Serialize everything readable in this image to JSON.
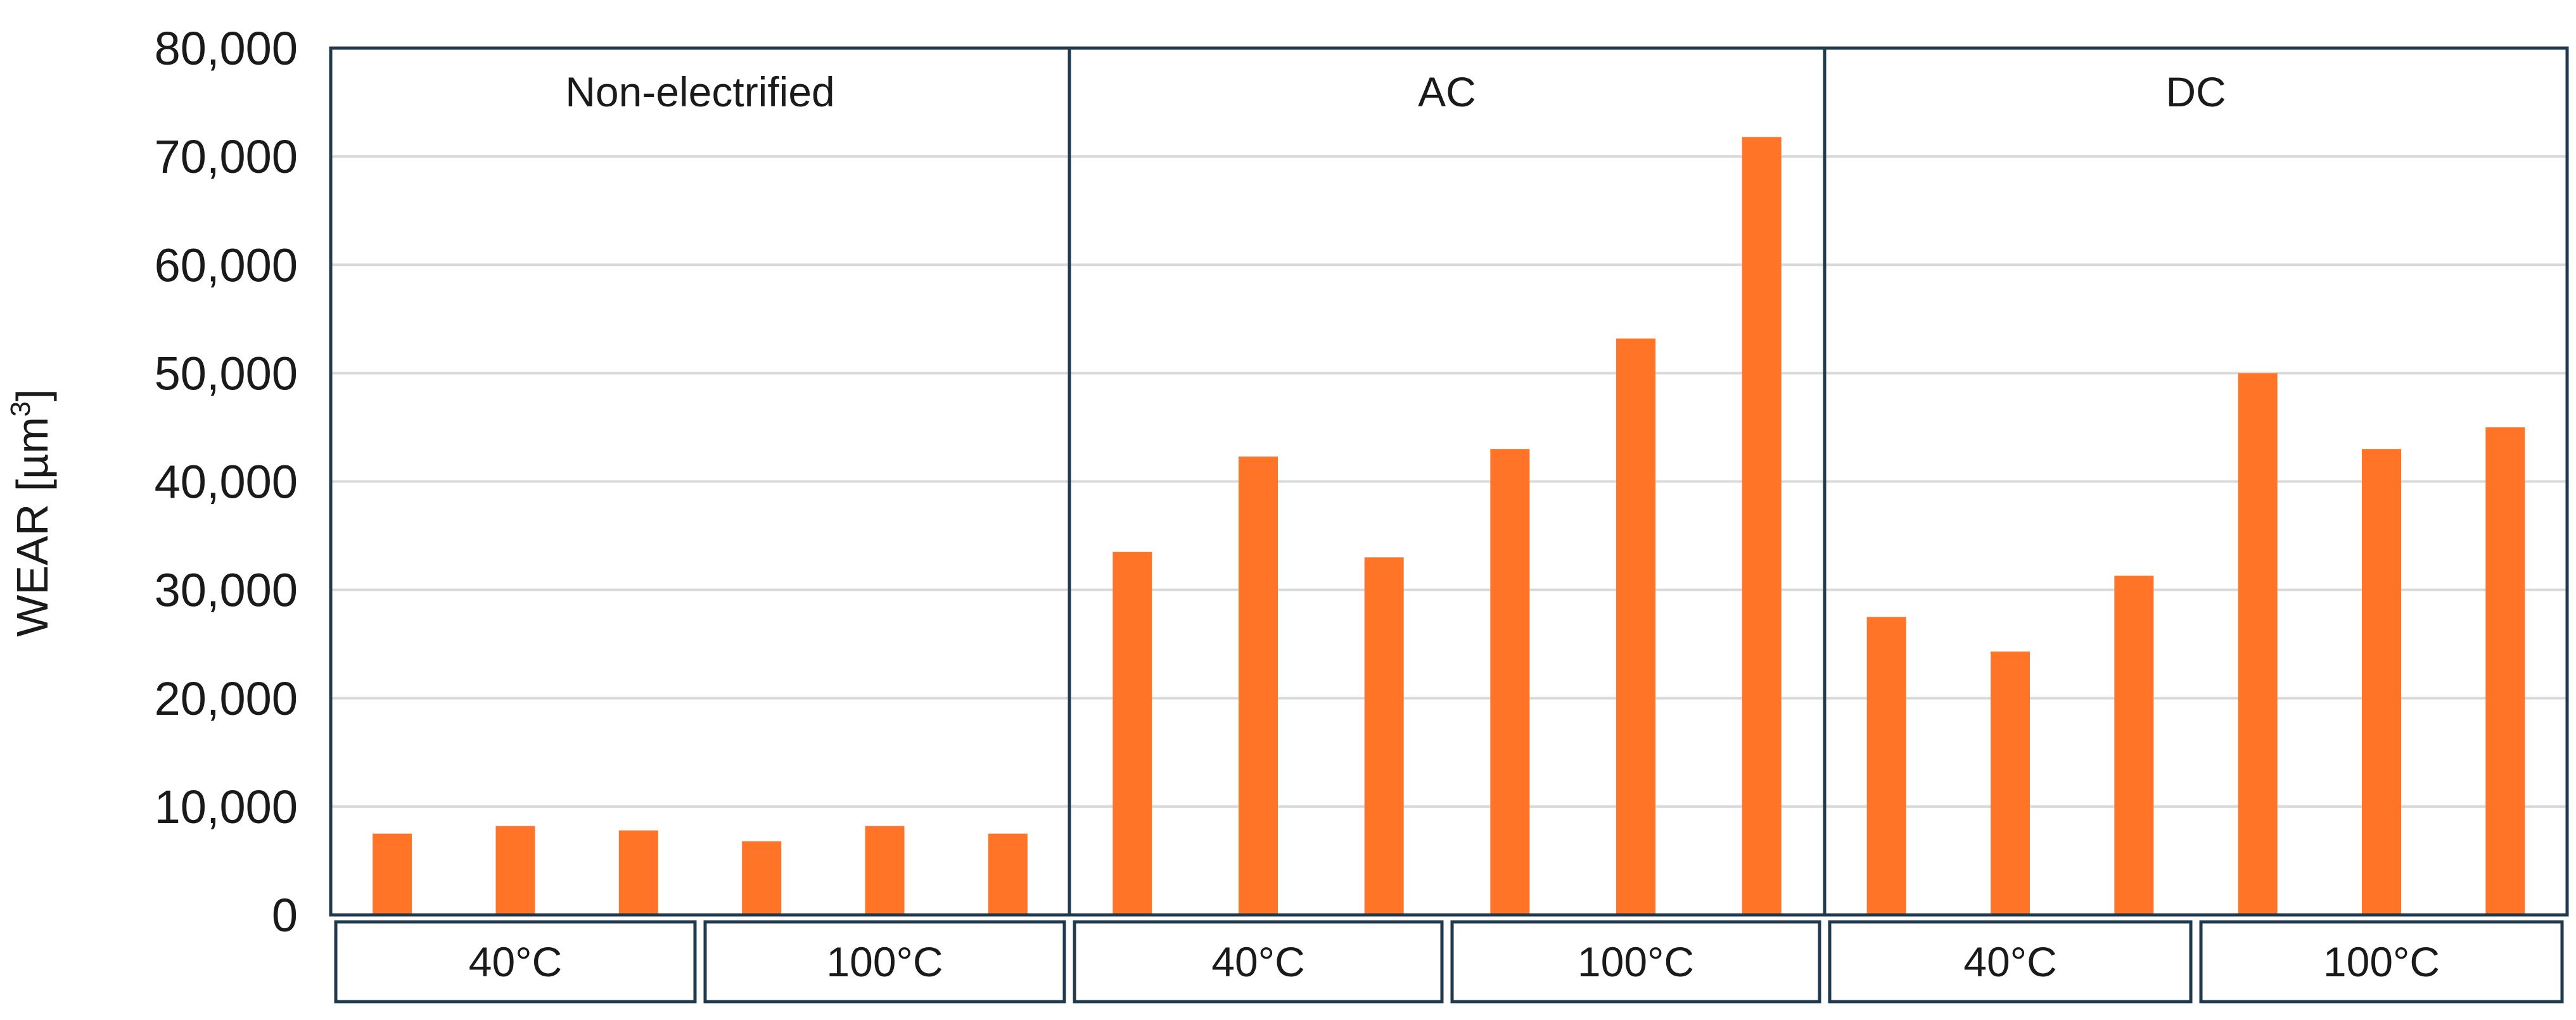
{
  "chart_data": {
    "type": "bar",
    "ylabel": "WEAR [µm",
    "ylabel_sup": "3",
    "ylabel_end": "]",
    "ylim": [
      0,
      80000
    ],
    "yticks": [
      0,
      10000,
      20000,
      30000,
      40000,
      50000,
      60000,
      70000,
      80000
    ],
    "ytick_labels": [
      "0",
      "10,000",
      "20,000",
      "30,000",
      "40,000",
      "50,000",
      "60,000",
      "70,000",
      "80,000"
    ],
    "grid": true,
    "bar_color": "#FF7427",
    "panels": [
      {
        "label": "Non-electrified",
        "groups": [
          {
            "label": "40°C",
            "values": [
              7500,
              8200,
              7800
            ]
          },
          {
            "label": "100°C",
            "values": [
              6800,
              8200,
              7500
            ]
          }
        ]
      },
      {
        "label": "AC",
        "groups": [
          {
            "label": "40°C",
            "values": [
              33500,
              42300,
              33000
            ]
          },
          {
            "label": "100°C",
            "values": [
              43000,
              53200,
              71800
            ]
          }
        ]
      },
      {
        "label": "DC",
        "groups": [
          {
            "label": "40°C",
            "values": [
              27500,
              24300,
              31300
            ]
          },
          {
            "label": "100°C",
            "values": [
              50000,
              43000,
              45000
            ]
          }
        ]
      }
    ]
  }
}
